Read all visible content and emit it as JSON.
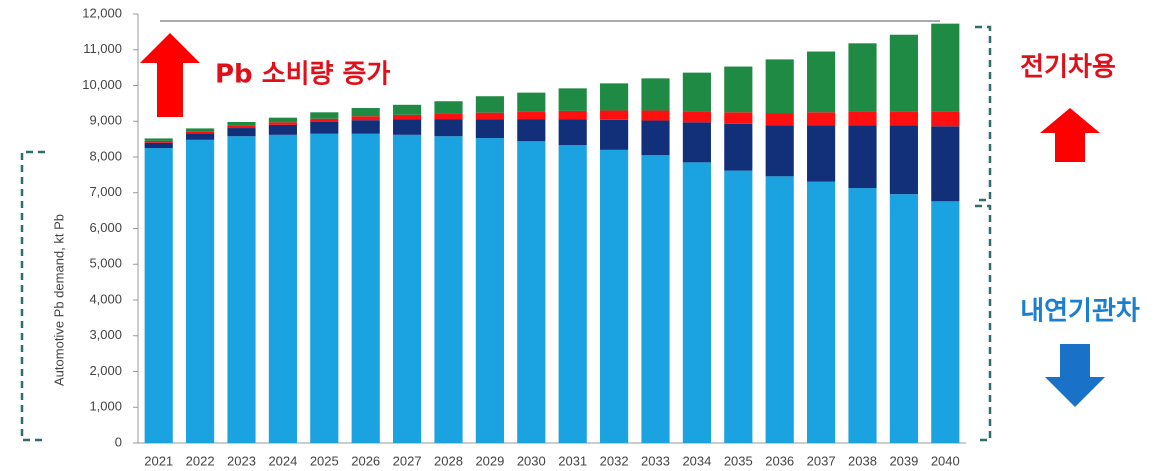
{
  "chart_data": {
    "type": "stacked_bar",
    "y_label": "Automotive Pb demand, kt Pb",
    "annotations": {
      "increase": "Pb 소비량 증가",
      "ev": "전기차용",
      "ice": "내연기관차"
    },
    "categories": [
      "2021",
      "2022",
      "2023",
      "2024",
      "2025",
      "2026",
      "2027",
      "2028",
      "2029",
      "2030",
      "2031",
      "2032",
      "2033",
      "2034",
      "2035",
      "2036",
      "2037",
      "2038",
      "2039",
      "2040"
    ],
    "series": [
      {
        "color": "#1aa3e0",
        "values": [
          8250,
          8480,
          8580,
          8620,
          8650,
          8650,
          8620,
          8580,
          8530,
          8440,
          8330,
          8200,
          8050,
          7850,
          7620,
          7460,
          7310,
          7130,
          6960,
          6760
        ]
      },
      {
        "color": "#12307a",
        "values": [
          150,
          180,
          230,
          280,
          330,
          380,
          430,
          480,
          520,
          620,
          720,
          840,
          970,
          1120,
          1310,
          1430,
          1580,
          1760,
          1920,
          2100
        ]
      },
      {
        "color": "#ff1010",
        "values": [
          50,
          50,
          60,
          70,
          90,
          110,
          130,
          160,
          190,
          220,
          240,
          260,
          280,
          300,
          320,
          340,
          360,
          380,
          400,
          420
        ]
      },
      {
        "color": "#1e8a44",
        "values": [
          70,
          90,
          110,
          130,
          180,
          230,
          280,
          340,
          460,
          520,
          630,
          760,
          900,
          1090,
          1280,
          1500,
          1700,
          1910,
          2140,
          2450
        ]
      }
    ],
    "ylim": [
      0,
      12000
    ],
    "yticks": [
      0,
      {
        "value": 1000,
        "label": "1,000"
      },
      {
        "value": 2000,
        "label": "2,000"
      },
      {
        "value": 3000,
        "label": "3,000"
      },
      {
        "value": 4000,
        "label": "4,000"
      },
      {
        "value": 5000,
        "label": "5,000"
      },
      {
        "value": 6000,
        "label": "6,000"
      },
      {
        "value": 7000,
        "label": "7,000"
      },
      {
        "value": 8000,
        "label": "8,000"
      },
      {
        "value": 9000,
        "label": "9,000"
      },
      {
        "value": 10000,
        "label": "10,000"
      },
      {
        "value": 11000,
        "label": "11,000"
      },
      {
        "value": 12000,
        "label": "12,000"
      }
    ]
  }
}
